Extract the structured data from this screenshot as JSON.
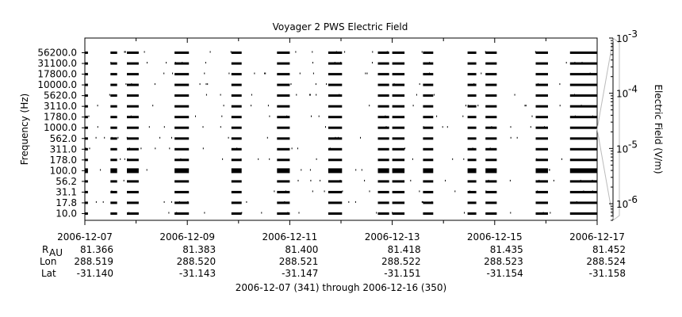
{
  "chart_data": {
    "type": "heatmap",
    "title": "Voyager 2 PWS Electric Field",
    "ylabel": "Frequency (Hz)",
    "colorbar_label": "Electric Field (V/m)",
    "colorbar_scale": "log",
    "colorbar_ticks": [
      {
        "value": 0.001,
        "base": "10",
        "exp": "-3"
      },
      {
        "value": 0.0001,
        "base": "10",
        "exp": "-4"
      },
      {
        "value": 1e-05,
        "base": "10",
        "exp": "-5"
      },
      {
        "value": 1e-06,
        "base": "10",
        "exp": "-6"
      }
    ],
    "colorbar_range": [
      5e-07,
      0.001
    ],
    "frequency_channels": [
      "56200.0",
      "31100.0",
      "17800.0",
      "10000.0",
      "5620.0",
      "3110.0",
      "1780.0",
      "1000.0",
      "562.0",
      "311.0",
      "178.0",
      "100.0",
      "56.2",
      "31.1",
      "17.8",
      "10.0"
    ],
    "x_range_days": [
      "2006-12-07",
      "2006-12-17"
    ],
    "x_ticks": [
      "2006-12-07",
      "2006-12-09",
      "2006-12-11",
      "2006-12-13",
      "2006-12-15",
      "2006-12-17"
    ],
    "ephemeris": {
      "labels": {
        "r": "R",
        "r_sub": "AU",
        "lon": "Lon",
        "lat": "Lat"
      },
      "R": [
        "81.366",
        "81.383",
        "81.400",
        "81.418",
        "81.435",
        "81.452"
      ],
      "Lon": [
        "288.519",
        "288.520",
        "288.521",
        "288.522",
        "288.523",
        "288.524"
      ],
      "Lat": [
        "-31.140",
        "-31.143",
        "-31.147",
        "-31.151",
        "-31.154",
        "-31.158"
      ]
    },
    "footer": "2006-12-07 (341) through 2006-12-16 (350)",
    "data_segments_days": [
      [
        0.0,
        0.06
      ],
      [
        0.5,
        0.63
      ],
      [
        0.82,
        1.05
      ],
      [
        1.75,
        2.03
      ],
      [
        2.86,
        3.06
      ],
      [
        3.75,
        4.0
      ],
      [
        4.75,
        5.02
      ],
      [
        5.72,
        5.94
      ],
      [
        6.0,
        6.24
      ],
      [
        6.6,
        6.8
      ],
      [
        7.47,
        7.64
      ],
      [
        7.82,
        8.04
      ],
      [
        8.8,
        9.04
      ],
      [
        9.47,
        10.0
      ]
    ]
  }
}
